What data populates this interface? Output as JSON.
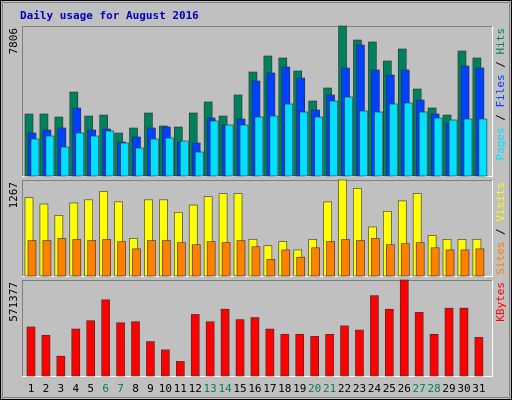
{
  "chart_data": [
    {
      "type": "bar",
      "title": "Daily usage for August 2016",
      "title_color": "#0000c0",
      "ylim": [
        0,
        7806
      ],
      "yticks": [
        7806
      ],
      "legend_separator": " / ",
      "series": [
        {
          "name": "Hits",
          "color": "#00805c",
          "values": [
            3226,
            3226,
            3070,
            4371,
            3122,
            3174,
            2238,
            2498,
            3279,
            2602,
            2550,
            3279,
            3851,
            3122,
            4215,
            5412,
            6245,
            6141,
            5464,
            3903,
            4580,
            7806,
            7077,
            6974,
            5985,
            6609,
            4527,
            3539,
            3174,
            6505,
            6141
          ]
        },
        {
          "name": "Files",
          "color": "#0040ff",
          "values": [
            2238,
            2394,
            2498,
            3539,
            2394,
            2446,
            1769,
            2030,
            2498,
            2550,
            1769,
            1717,
            3018,
            2654,
            2966,
            4944,
            5360,
            5672,
            5100,
            3435,
            4215,
            5620,
            6817,
            5516,
            5256,
            5516,
            3955,
            3226,
            2758,
            5724,
            5620
          ]
        },
        {
          "name": "Pages",
          "color": "#00e0ff",
          "values": [
            1925,
            2082,
            1509,
            2238,
            2082,
            2342,
            1717,
            1457,
            1925,
            1978,
            1821,
            1249,
            2862,
            2654,
            2654,
            3070,
            3122,
            3747,
            3331,
            3070,
            3903,
            4111,
            3383,
            3331,
            3747,
            3799,
            3331,
            3018,
            2914,
            2966,
            2966
          ]
        }
      ]
    },
    {
      "type": "bar",
      "ylim": [
        0,
        1267
      ],
      "yticks": [
        1267
      ],
      "legend_separator": " / ",
      "series": [
        {
          "name": "Visits",
          "color": "#ffff00",
          "values": [
            1033,
            950,
            799,
            964,
            1005,
            1115,
            978,
            496,
            1005,
            1005,
            840,
            936,
            1047,
            1088,
            1088,
            482,
            399,
            454,
            344,
            482,
            978,
            1267,
            1157,
            647,
            854,
            991,
            1088,
            537,
            482,
            482,
            482
          ]
        },
        {
          "name": "Sites",
          "color": "#ff8000",
          "values": [
            468,
            468,
            496,
            482,
            468,
            482,
            454,
            358,
            468,
            468,
            441,
            413,
            454,
            441,
            468,
            386,
            220,
            344,
            248,
            372,
            454,
            482,
            468,
            496,
            413,
            427,
            441,
            372,
            344,
            344,
            358
          ]
        }
      ]
    },
    {
      "type": "bar",
      "ylim": [
        0,
        571377
      ],
      "yticks": [
        571377
      ],
      "categories": [
        "1",
        "2",
        "3",
        "4",
        "5",
        "6",
        "7",
        "8",
        "9",
        "10",
        "11",
        "12",
        "13",
        "14",
        "15",
        "16",
        "17",
        "18",
        "19",
        "20",
        "21",
        "22",
        "23",
        "24",
        "25",
        "26",
        "27",
        "28",
        "29",
        "30",
        "31"
      ],
      "category_colors": [
        "#000000",
        "#000000",
        "#000000",
        "#000000",
        "#000000",
        "#008060",
        "#008060",
        "#000000",
        "#000000",
        "#000000",
        "#000000",
        "#000000",
        "#008060",
        "#008060",
        "#000000",
        "#000000",
        "#000000",
        "#000000",
        "#000000",
        "#008060",
        "#008060",
        "#000000",
        "#000000",
        "#000000",
        "#000000",
        "#000000",
        "#008060",
        "#008060",
        "#000000",
        "#000000",
        "#000000"
      ],
      "series": [
        {
          "name": "KBytes",
          "color": "#ff0000",
          "values": [
            291917,
            242229,
            118009,
            279495,
            329183,
            453403,
            316761,
            322972,
            204963,
            155275,
            86954,
            366449,
            322972,
            397504,
            335394,
            347816,
            279495,
            248440,
            248440,
            236018,
            248440,
            298128,
            273284,
            478247,
            397504,
            571377,
            378871,
            248440,
            403715,
            403715,
            229807
          ]
        }
      ]
    }
  ]
}
